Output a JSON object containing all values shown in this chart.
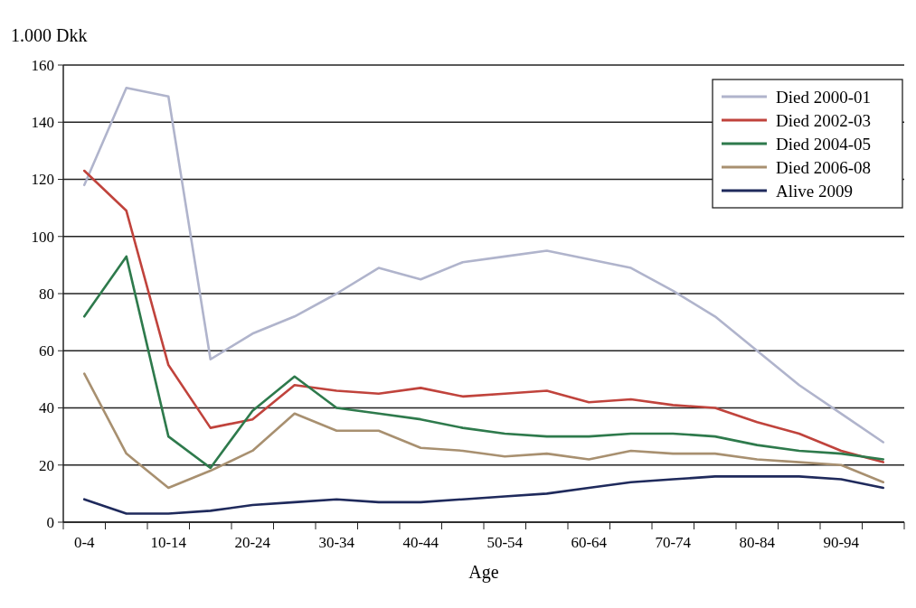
{
  "chart_data": {
    "type": "line",
    "ylabel": "1.000 Dkk",
    "xlabel": "Age",
    "categories": [
      "0-4",
      null,
      "10-14",
      null,
      "20-24",
      null,
      "30-34",
      null,
      "40-44",
      null,
      "50-54",
      null,
      "60-64",
      null,
      "70-74",
      null,
      "80-84",
      null,
      "90-94",
      null
    ],
    "ylim": [
      0,
      160
    ],
    "yticks": [
      0,
      20,
      40,
      60,
      80,
      100,
      120,
      140,
      160
    ],
    "grid": "y",
    "legend": "top right",
    "marker": "none",
    "line_style": "solid",
    "series": [
      {
        "name": "Died 2000-01",
        "color": "#b0b4cc",
        "values": [
          118,
          152,
          149,
          57,
          66,
          72,
          80,
          89,
          85,
          91,
          93,
          95,
          92,
          89,
          81,
          72,
          60,
          48,
          38,
          28
        ]
      },
      {
        "name": "Died 2002-03",
        "color": "#c0433c",
        "values": [
          123,
          109,
          55,
          33,
          36,
          48,
          46,
          45,
          47,
          44,
          45,
          46,
          42,
          43,
          41,
          40,
          35,
          31,
          25,
          21
        ]
      },
      {
        "name": "Died 2004-05",
        "color": "#2e7a4c",
        "values": [
          72,
          93,
          30,
          19,
          39,
          51,
          40,
          38,
          36,
          33,
          31,
          30,
          30,
          31,
          31,
          30,
          27,
          25,
          24,
          22
        ]
      },
      {
        "name": "Died 2006-08",
        "color": "#a89070",
        "values": [
          52,
          24,
          12,
          18,
          25,
          38,
          32,
          32,
          26,
          25,
          23,
          24,
          22,
          25,
          24,
          24,
          22,
          21,
          20,
          14
        ]
      },
      {
        "name": "Alive 2009",
        "color": "#1f2a5c",
        "values": [
          8,
          3,
          3,
          4,
          6,
          7,
          8,
          7,
          7,
          8,
          9,
          10,
          12,
          14,
          15,
          16,
          16,
          16,
          15,
          12
        ]
      }
    ]
  }
}
